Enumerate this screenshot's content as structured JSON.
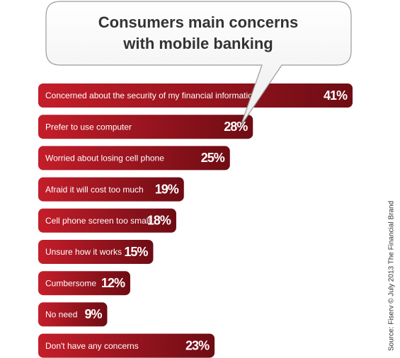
{
  "chart_data": {
    "type": "bar",
    "orientation": "horizontal",
    "title": [
      "Consumers main concerns",
      "with mobile banking"
    ],
    "categories": [
      "Concerned about the security of my financial information",
      "Prefer to use computer",
      "Worried about losing cell phone",
      "Afraid it will cost too much",
      "Cell phone screen too small",
      "Unsure how it works",
      "Cumbersome",
      "No need",
      "Don't have any concerns"
    ],
    "values": [
      41,
      28,
      25,
      19,
      18,
      15,
      12,
      9,
      23
    ],
    "value_labels": [
      "41%",
      "28%",
      "25%",
      "19%",
      "18%",
      "15%",
      "12%",
      "9%",
      "23%"
    ],
    "color": "#c41e2a",
    "source": "Source: Fiserv © July 2013 The Financial Brand"
  }
}
